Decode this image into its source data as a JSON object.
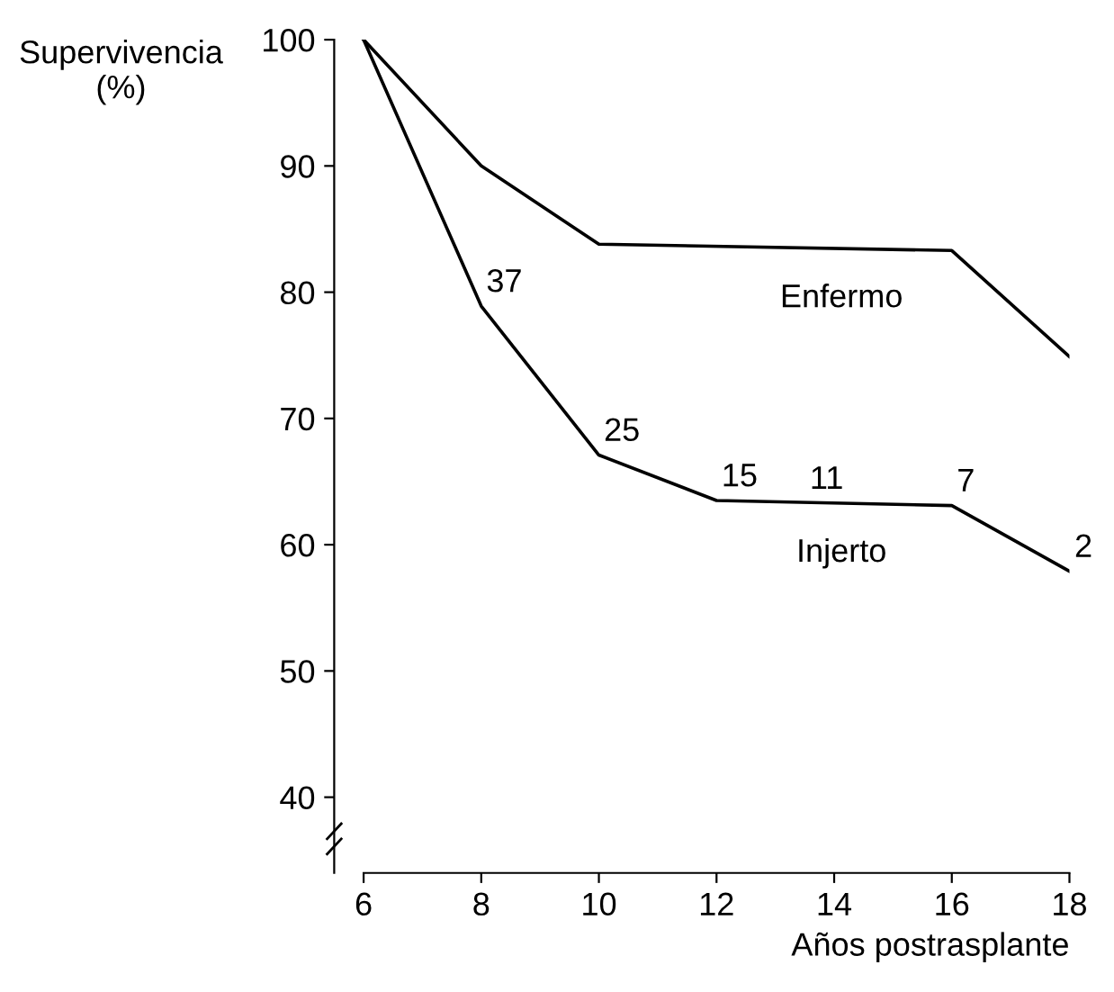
{
  "chart_data": {
    "type": "line",
    "ylabel": "Supervivencia\n(%)",
    "xlabel": "Años postrasplante",
    "series": [
      {
        "name": "Enfermo",
        "color": "#000000",
        "x": [
          6,
          8,
          10,
          16,
          18
        ],
        "values": [
          100,
          90,
          83.8,
          83.3,
          74.9
        ]
      },
      {
        "name": "Injerto",
        "color": "#000000",
        "x": [
          6,
          8,
          10,
          12,
          16,
          18
        ],
        "values": [
          100,
          78.9,
          67.1,
          63.5,
          63.1,
          57.9
        ]
      }
    ],
    "xlim": [
      5.5,
      18
    ],
    "xticks": [
      6,
      8,
      10,
      12,
      14,
      16,
      18
    ],
    "ylim": [
      34,
      100
    ],
    "yticks": [
      40,
      50,
      60,
      70,
      80,
      90,
      100
    ],
    "annotations": [
      {
        "text": "37",
        "x": 8,
        "y": 78.9
      },
      {
        "text": "25",
        "x": 10,
        "y": 67.1
      },
      {
        "text": "15",
        "x": 12,
        "y": 63.5
      },
      {
        "text": "11",
        "x": 13.5,
        "y": 63.3
      },
      {
        "text": "7",
        "x": 16,
        "y": 63.1
      },
      {
        "text": "2",
        "x": 18,
        "y": 57.9
      }
    ],
    "grid": false,
    "legend": false,
    "marker": "none",
    "line_style": "solid"
  }
}
